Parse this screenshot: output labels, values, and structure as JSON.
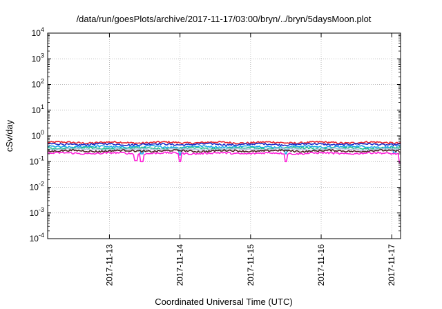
{
  "chart_data": {
    "type": "line",
    "title": "/data/run/goesPlots/archive/2017-11-17/03:00/bryn/../bryn/5daysMoon.plot",
    "xlabel": "Coordinated Universal Time (UTC)",
    "ylabel": "cSv/day",
    "y_scale": "log",
    "ylim": [
      0.0001,
      10000
    ],
    "y_ticks": [
      {
        "base": "10",
        "exp": "-4",
        "value": 0.0001
      },
      {
        "base": "10",
        "exp": "-3",
        "value": 0.001
      },
      {
        "base": "10",
        "exp": "-2",
        "value": 0.01
      },
      {
        "base": "10",
        "exp": "-1",
        "value": 0.1
      },
      {
        "base": "10",
        "exp": "0",
        "value": 1
      },
      {
        "base": "10",
        "exp": "1",
        "value": 10
      },
      {
        "base": "10",
        "exp": "2",
        "value": 100
      },
      {
        "base": "10",
        "exp": "3",
        "value": 1000
      },
      {
        "base": "10",
        "exp": "4",
        "value": 10000
      }
    ],
    "xlim": [
      "2017-11-12T03:00",
      "2017-11-17T03:00"
    ],
    "x_ticks": [
      "2017-11-13",
      "2017-11-14",
      "2017-11-15",
      "2017-11-16",
      "2017-11-17"
    ],
    "grid": true,
    "series": [
      {
        "color": "#e8222e",
        "level": 0.55,
        "dips": []
      },
      {
        "color": "#1f2fc9",
        "level": 0.47,
        "dips": []
      },
      {
        "color": "#1aa8e8",
        "level": 0.38,
        "dips": [
          {
            "x": "2017-11-13T11:00",
            "value": 0.2
          },
          {
            "x": "2017-11-14T00:00",
            "value": 0.18
          },
          {
            "x": "2017-11-15T12:00",
            "value": 0.2
          },
          {
            "x": "2017-11-17T01:00",
            "value": 0.22
          }
        ]
      },
      {
        "color": "#1fbf8f",
        "level": 0.33,
        "dips": []
      },
      {
        "color": "#b0c4de",
        "level": 0.3,
        "dips": []
      },
      {
        "color": "#4a1f1f",
        "level": 0.26,
        "dips": []
      },
      {
        "color": "#ff1fd8",
        "level": 0.21,
        "dips": [
          {
            "x": "2017-11-13T09:00",
            "value": 0.11
          },
          {
            "x": "2017-11-13T11:00",
            "value": 0.1
          },
          {
            "x": "2017-11-14T00:00",
            "value": 0.1
          },
          {
            "x": "2017-11-15T12:00",
            "value": 0.1
          },
          {
            "x": "2017-11-17T03:00",
            "value": 0.09
          }
        ]
      }
    ]
  }
}
